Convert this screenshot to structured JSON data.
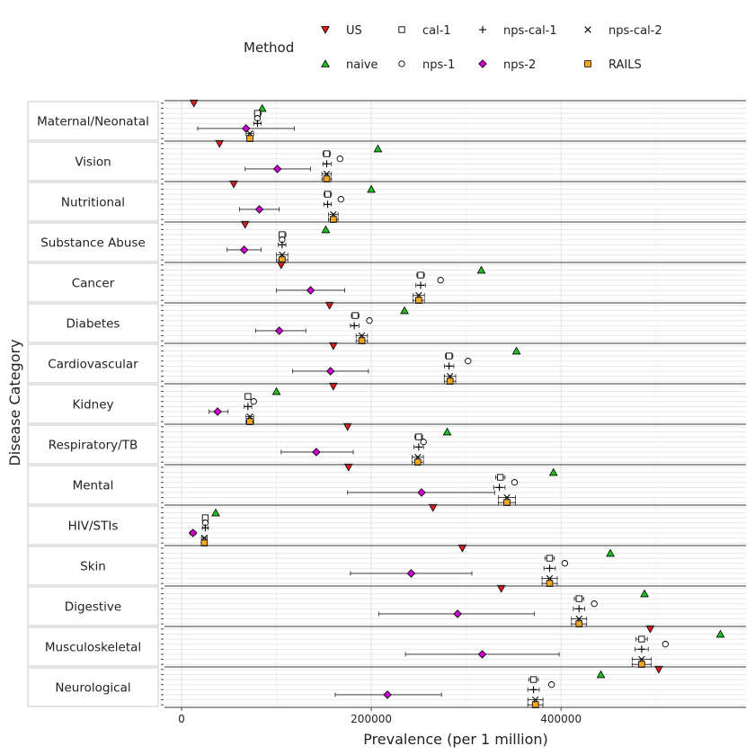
{
  "chart_data": {
    "type": "scatter",
    "title": "",
    "xlabel": "Prevalence (per 1 million)",
    "ylabel": "Disease Category",
    "xlim": [
      -18000,
      595000
    ],
    "x_ticks": [
      0,
      200000,
      400000
    ],
    "x_tick_labels": [
      "0",
      "200000",
      "400000"
    ],
    "legend": {
      "title": "Method",
      "position": "top",
      "entries": [
        {
          "name": "US",
          "symbol": "triangle-down",
          "color": "#e41a1c"
        },
        {
          "name": "cal-1",
          "symbol": "square-open",
          "color": "#000000"
        },
        {
          "name": "nps-cal-1",
          "symbol": "plus",
          "color": "#000000"
        },
        {
          "name": "nps-cal-2",
          "symbol": "cross",
          "color": "#000000"
        },
        {
          "name": "naive",
          "symbol": "triangle-up",
          "color": "#1fbf1f"
        },
        {
          "name": "nps-1",
          "symbol": "circle-open",
          "color": "#000000"
        },
        {
          "name": "nps-2",
          "symbol": "diamond",
          "color": "#cc00cc"
        },
        {
          "name": "RAILS",
          "symbol": "square",
          "color": "#f5a623"
        }
      ]
    },
    "method_order": [
      "US",
      "naive",
      "cal-1",
      "nps-1",
      "nps-cal-1",
      "nps-2",
      "nps-cal-2",
      "RAILS"
    ],
    "categories": [
      {
        "name": "Maternal/Neonatal",
        "values": {
          "US": 13000,
          "naive": 85000,
          "cal-1": 80000,
          "nps-1": 80000,
          "nps-cal-1": 80000,
          "nps-2": 68000,
          "nps-cal-2": 72000,
          "RAILS": 72000
        },
        "intervals": {
          "cal-1": [
            77000,
            84000
          ],
          "nps-cal-1": [
            76000,
            84000
          ],
          "nps-2": [
            17000,
            119000
          ],
          "nps-cal-2": [
            68000,
            76000
          ],
          "RAILS": [
            69000,
            75000
          ]
        }
      },
      {
        "name": "Vision",
        "values": {
          "US": 40000,
          "naive": 207000,
          "cal-1": 153000,
          "nps-1": 167000,
          "nps-cal-1": 153000,
          "nps-2": 101000,
          "nps-cal-2": 153000,
          "RAILS": 153000
        },
        "intervals": {
          "cal-1": [
            149000,
            157000
          ],
          "nps-cal-1": [
            149000,
            158000
          ],
          "nps-2": [
            67000,
            136000
          ],
          "nps-cal-2": [
            148000,
            158000
          ],
          "RAILS": [
            148000,
            158000
          ]
        }
      },
      {
        "name": "Nutritional",
        "values": {
          "US": 55000,
          "naive": 200000,
          "cal-1": 154000,
          "nps-1": 168000,
          "nps-cal-1": 154000,
          "nps-2": 82000,
          "nps-cal-2": 160000,
          "RAILS": 160000
        },
        "intervals": {
          "cal-1": [
            150000,
            158000
          ],
          "nps-cal-1": [
            150000,
            158000
          ],
          "nps-2": [
            61000,
            103000
          ],
          "nps-cal-2": [
            155000,
            165000
          ],
          "RAILS": [
            155000,
            165000
          ]
        }
      },
      {
        "name": "Substance Abuse",
        "values": {
          "US": 67000,
          "naive": 152000,
          "cal-1": 106000,
          "nps-1": 106000,
          "nps-cal-1": 106000,
          "nps-2": 66000,
          "nps-cal-2": 106000,
          "RAILS": 106000
        },
        "intervals": {
          "cal-1": [
            103000,
            110000
          ],
          "nps-cal-1": [
            102000,
            110000
          ],
          "nps-2": [
            48000,
            84000
          ],
          "nps-cal-2": [
            100000,
            112000
          ],
          "RAILS": [
            100000,
            112000
          ]
        }
      },
      {
        "name": "Cancer",
        "values": {
          "US": 105000,
          "naive": 316000,
          "cal-1": 252000,
          "nps-1": 273000,
          "nps-cal-1": 252000,
          "nps-2": 136000,
          "nps-cal-2": 250000,
          "RAILS": 250000
        },
        "intervals": {
          "cal-1": [
            248000,
            256000
          ],
          "nps-cal-1": [
            247000,
            257000
          ],
          "nps-2": [
            100000,
            172000
          ],
          "nps-cal-2": [
            244000,
            256000
          ],
          "RAILS": [
            244000,
            256000
          ]
        }
      },
      {
        "name": "Diabetes",
        "values": {
          "US": 156000,
          "naive": 235000,
          "cal-1": 183000,
          "nps-1": 198000,
          "nps-cal-1": 182000,
          "nps-2": 103000,
          "nps-cal-2": 190000,
          "RAILS": 190000
        },
        "intervals": {
          "cal-1": [
            179000,
            187000
          ],
          "nps-cal-1": [
            178000,
            187000
          ],
          "nps-2": [
            78000,
            131000
          ],
          "nps-cal-2": [
            184000,
            196000
          ],
          "RAILS": [
            184000,
            196000
          ]
        }
      },
      {
        "name": "Cardiovascular",
        "values": {
          "US": 160000,
          "naive": 353000,
          "cal-1": 282000,
          "nps-1": 302000,
          "nps-cal-1": 282000,
          "nps-2": 157000,
          "nps-cal-2": 283000,
          "RAILS": 283000
        },
        "intervals": {
          "cal-1": [
            278000,
            286000
          ],
          "nps-cal-1": [
            277000,
            287000
          ],
          "nps-2": [
            117000,
            197000
          ],
          "nps-cal-2": [
            277000,
            289000
          ],
          "RAILS": [
            277000,
            289000
          ]
        }
      },
      {
        "name": "Kidney",
        "values": {
          "US": 160000,
          "naive": 100000,
          "cal-1": 70000,
          "nps-1": 76000,
          "nps-cal-1": 70000,
          "nps-2": 38000,
          "nps-cal-2": 72000,
          "RAILS": 72000
        },
        "intervals": {
          "cal-1": [
            67000,
            73000
          ],
          "nps-cal-1": [
            66000,
            74000
          ],
          "nps-2": [
            29000,
            49000
          ],
          "nps-cal-2": [
            68000,
            76000
          ],
          "RAILS": [
            68000,
            76000
          ]
        }
      },
      {
        "name": "Respiratory/TB",
        "values": {
          "US": 175000,
          "naive": 280000,
          "cal-1": 250000,
          "nps-1": 255000,
          "nps-cal-1": 250000,
          "nps-2": 142000,
          "nps-cal-2": 249000,
          "RAILS": 249000
        },
        "intervals": {
          "cal-1": [
            246000,
            254000
          ],
          "nps-cal-1": [
            245000,
            255000
          ],
          "nps-2": [
            105000,
            181000
          ],
          "nps-cal-2": [
            243000,
            255000
          ],
          "RAILS": [
            243000,
            255000
          ]
        }
      },
      {
        "name": "Mental",
        "values": {
          "US": 176000,
          "naive": 392000,
          "cal-1": 336000,
          "nps-1": 351000,
          "nps-cal-1": 335000,
          "nps-2": 253000,
          "nps-cal-2": 343000,
          "RAILS": 343000
        },
        "intervals": {
          "cal-1": [
            331000,
            341000
          ],
          "nps-cal-1": [
            329000,
            341000
          ],
          "nps-2": [
            175000,
            330000
          ],
          "nps-cal-2": [
            334000,
            352000
          ],
          "RAILS": [
            334000,
            352000
          ]
        }
      },
      {
        "name": "HIV/STIs",
        "values": {
          "US": 265000,
          "naive": 36000,
          "cal-1": 25000,
          "nps-1": 25000,
          "nps-cal-1": 25000,
          "nps-2": 12000,
          "nps-cal-2": 24000,
          "RAILS": 24000
        },
        "intervals": {
          "cal-1": [
            23000,
            27000
          ],
          "nps-cal-1": [
            22000,
            28000
          ],
          "nps-2": [
            9000,
            15000
          ],
          "nps-cal-2": [
            21000,
            27000
          ],
          "RAILS": [
            21000,
            27000
          ]
        }
      },
      {
        "name": "Skin",
        "values": {
          "US": 296000,
          "naive": 452000,
          "cal-1": 388000,
          "nps-1": 404000,
          "nps-cal-1": 388000,
          "nps-2": 242000,
          "nps-cal-2": 388000,
          "RAILS": 388000
        },
        "intervals": {
          "cal-1": [
            383000,
            393000
          ],
          "nps-cal-1": [
            382000,
            394000
          ],
          "nps-2": [
            178000,
            306000
          ],
          "nps-cal-2": [
            380000,
            396000
          ],
          "RAILS": [
            380000,
            396000
          ]
        }
      },
      {
        "name": "Digestive",
        "values": {
          "US": 337000,
          "naive": 488000,
          "cal-1": 419000,
          "nps-1": 435000,
          "nps-cal-1": 419000,
          "nps-2": 291000,
          "nps-cal-2": 419000,
          "RAILS": 419000
        },
        "intervals": {
          "cal-1": [
            414000,
            424000
          ],
          "nps-cal-1": [
            413000,
            425000
          ],
          "nps-2": [
            208000,
            372000
          ],
          "nps-cal-2": [
            411000,
            427000
          ],
          "RAILS": [
            411000,
            427000
          ]
        }
      },
      {
        "name": "Musculoskeletal",
        "values": {
          "US": 494000,
          "naive": 568000,
          "cal-1": 485000,
          "nps-1": 510000,
          "nps-cal-1": 485000,
          "nps-2": 317000,
          "nps-cal-2": 485000,
          "RAILS": 485000
        },
        "intervals": {
          "cal-1": [
            479000,
            491000
          ],
          "nps-cal-1": [
            478000,
            492000
          ],
          "nps-2": [
            236000,
            398000
          ],
          "nps-cal-2": [
            475000,
            495000
          ],
          "RAILS": [
            475000,
            495000
          ]
        }
      },
      {
        "name": "Neurological",
        "values": {
          "US": 503000,
          "naive": 442000,
          "cal-1": 371000,
          "nps-1": 390000,
          "nps-cal-1": 371000,
          "nps-2": 217000,
          "nps-cal-2": 373000,
          "RAILS": 373000
        },
        "intervals": {
          "cal-1": [
            366000,
            376000
          ],
          "nps-cal-1": [
            365000,
            377000
          ],
          "nps-2": [
            162000,
            274000
          ],
          "nps-cal-2": [
            365000,
            381000
          ],
          "RAILS": [
            365000,
            381000
          ]
        }
      }
    ]
  }
}
